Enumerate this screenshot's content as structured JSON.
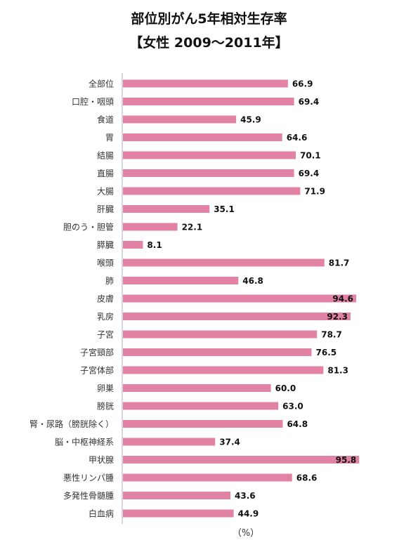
{
  "chart_data": {
    "type": "bar",
    "orientation": "horizontal",
    "title": "部位別がん5年相対生存率",
    "subtitle": "【女性 2009〜2011年】",
    "unit": "（%）",
    "categories": [
      "全部位",
      "口腔・咽頭",
      "食道",
      "胃",
      "結腸",
      "直腸",
      "大腸",
      "肝臓",
      "胆のう・胆管",
      "膵臓",
      "喉頭",
      "肺",
      "皮膚",
      "乳房",
      "子宮",
      "子宮頸部",
      "子宮体部",
      "卵巣",
      "膀胱",
      "腎・尿路（膀胱除く）",
      "脳・中枢神経系",
      "甲状腺",
      "悪性リンパ腫",
      "多発性骨髄腫",
      "白血病"
    ],
    "values": [
      66.9,
      69.4,
      45.9,
      64.6,
      70.1,
      69.4,
      71.9,
      35.1,
      22.1,
      8.1,
      81.7,
      46.8,
      94.6,
      92.3,
      78.7,
      76.5,
      81.3,
      60.0,
      63.0,
      64.8,
      37.4,
      95.8,
      68.6,
      43.6,
      44.9
    ],
    "value_labels": [
      "66.9",
      "69.4",
      "45.9",
      "64.6",
      "70.1",
      "69.4",
      "71.9",
      "35.1",
      "22.1",
      "8.1",
      "81.7",
      "46.8",
      "94.6",
      "92.3",
      "78.7",
      "76.5",
      "81.3",
      "60.0",
      "63.0",
      "64.8",
      "37.4",
      "95.8",
      "68.6",
      "43.6",
      "44.9"
    ],
    "xlim": [
      0,
      100
    ],
    "grid": false,
    "legend": "none",
    "bar_color": "#e283a6",
    "axis_color": "#c8c8d8"
  }
}
